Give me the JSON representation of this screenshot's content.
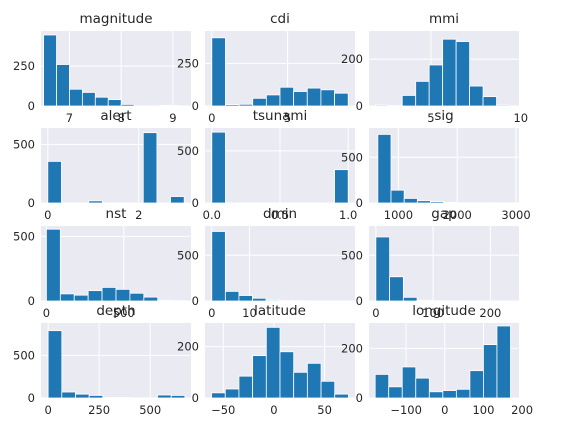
{
  "chart_data": [
    {
      "type": "bar",
      "title": "magnitude",
      "xticks": [
        "7",
        "8",
        "9"
      ],
      "xlim": [
        6.45,
        9.35
      ],
      "yticks": [
        "0",
        "250"
      ],
      "ylim": [
        0,
        470
      ],
      "bin_edges": [
        6.5,
        6.75,
        7.0,
        7.25,
        7.5,
        7.75,
        8.0,
        8.25,
        8.5,
        8.75,
        9.1
      ],
      "values": [
        445,
        260,
        105,
        85,
        55,
        40,
        10,
        0,
        0,
        4
      ]
    },
    {
      "type": "bar",
      "title": "cdi",
      "xticks": [
        "0",
        "5"
      ],
      "xlim": [
        -0.45,
        9.45
      ],
      "yticks": [
        "0",
        "250"
      ],
      "ylim": [
        0,
        440
      ],
      "bin_edges": [
        0,
        0.9,
        1.8,
        2.7,
        3.6,
        4.5,
        5.4,
        6.3,
        7.2,
        8.1,
        9.0
      ],
      "values": [
        400,
        8,
        10,
        45,
        65,
        110,
        85,
        105,
        95,
        75
      ]
    },
    {
      "type": "bar",
      "title": "mmi",
      "xticks": [
        "5",
        "10"
      ],
      "xlim": [
        1.55,
        9.9
      ],
      "yticks": [
        "0",
        "200"
      ],
      "ylim": [
        0,
        320
      ],
      "bin_edges": [
        1.9,
        2.65,
        3.4,
        4.15,
        4.9,
        5.65,
        6.4,
        7.15,
        7.9,
        8.65,
        9.4
      ],
      "values": [
        4,
        2,
        45,
        105,
        175,
        285,
        275,
        85,
        40,
        4
      ]
    },
    {
      "type": "bar",
      "title": "alert",
      "xticks": [
        "0",
        "2"
      ],
      "xlim": [
        -0.15,
        3.15
      ],
      "yticks": [
        "0",
        "500"
      ],
      "ylim": [
        0,
        640
      ],
      "bin_edges": [
        0,
        0.3,
        0.6,
        0.9,
        1.2,
        1.5,
        1.8,
        2.1,
        2.4,
        2.7,
        3.0
      ],
      "values": [
        355,
        0,
        0,
        18,
        0,
        0,
        0,
        600,
        0,
        55
      ]
    },
    {
      "type": "bar",
      "title": "tsunami",
      "xticks": [
        "0.0",
        "0.5",
        "1.0"
      ],
      "xlim": [
        -0.05,
        1.05
      ],
      "yticks": [
        "0",
        "500"
      ],
      "ylim": [
        0,
        720
      ],
      "bin_edges": [
        0,
        0.1,
        0.2,
        0.3,
        0.4,
        0.5,
        0.6,
        0.7,
        0.8,
        0.9,
        1.0
      ],
      "values": [
        680,
        0,
        0,
        0,
        0,
        0,
        0,
        0,
        0,
        320
      ]
    },
    {
      "type": "bar",
      "title": "sig",
      "xticks": [
        "1000",
        "2000",
        "3000"
      ],
      "xlim": [
        500,
        3050
      ],
      "yticks": [
        "0",
        "500"
      ],
      "ylim": [
        0,
        820
      ],
      "bin_edges": [
        650,
        874,
        1098,
        1322,
        1546,
        1770,
        1994,
        2218,
        2442,
        2666,
        2890
      ],
      "values": [
        750,
        140,
        50,
        25,
        15,
        6,
        3,
        2,
        2,
        1
      ]
    },
    {
      "type": "bar",
      "title": "nst",
      "xticks": [
        "0",
        "500"
      ],
      "xlim": [
        -35,
        935
      ],
      "yticks": [
        "0",
        "500"
      ],
      "ylim": [
        0,
        580
      ],
      "bin_edges": [
        0,
        90,
        180,
        270,
        360,
        450,
        540,
        630,
        720,
        810,
        900
      ],
      "values": [
        555,
        55,
        45,
        80,
        105,
        90,
        60,
        30,
        5,
        2
      ]
    },
    {
      "type": "bar",
      "title": "dmin",
      "xticks": [
        "0",
        "10"
      ],
      "xlim": [
        -1.8,
        38
      ],
      "yticks": [
        "0",
        "500"
      ],
      "ylim": [
        0,
        820
      ],
      "bin_edges": [
        0,
        3.6,
        7.2,
        10.8,
        14.4,
        18,
        21.6,
        25.2,
        28.8,
        32.4,
        36
      ],
      "values": [
        760,
        105,
        60,
        30,
        10,
        5,
        3,
        1,
        1,
        1
      ]
    },
    {
      "type": "bar",
      "title": "gap",
      "xticks": [
        "0",
        "100",
        "200"
      ],
      "xlim": [
        -12,
        250
      ],
      "yticks": [
        "0",
        "500"
      ],
      "ylim": [
        0,
        820
      ],
      "bin_edges": [
        0,
        24,
        48,
        72,
        96,
        120,
        144,
        168,
        192,
        216,
        240
      ],
      "values": [
        700,
        265,
        40,
        8,
        3,
        2,
        1,
        1,
        1,
        1
      ]
    },
    {
      "type": "bar",
      "title": "depth",
      "xticks": [
        "0",
        "250",
        "500"
      ],
      "xlim": [
        -35,
        700
      ],
      "yticks": [
        "0",
        "500"
      ],
      "ylim": [
        0,
        880
      ],
      "bin_edges": [
        0,
        67,
        134,
        201,
        268,
        335,
        402,
        469,
        536,
        603,
        670
      ],
      "values": [
        790,
        70,
        45,
        30,
        5,
        5,
        2,
        1,
        35,
        30
      ]
    },
    {
      "type": "bar",
      "title": "latitude",
      "xticks": [
        "−50",
        "0",
        "50"
      ],
      "xlim": [
        -68,
        80
      ],
      "yticks": [
        "0",
        "200"
      ],
      "ylim": [
        0,
        292
      ],
      "bin_edges": [
        -61.5,
        -48,
        -34.5,
        -21,
        -7.5,
        6,
        19.5,
        33,
        46.5,
        60,
        73.5
      ],
      "values": [
        20,
        35,
        85,
        165,
        275,
        180,
        100,
        135,
        65,
        15
      ]
    },
    {
      "type": "bar",
      "title": "longitude",
      "xticks": [
        "−100",
        "0",
        "100",
        "200"
      ],
      "xlim": [
        -196,
        192
      ],
      "yticks": [
        "0",
        "200"
      ],
      "ylim": [
        0,
        302
      ],
      "bin_edges": [
        -180,
        -145,
        -110,
        -75,
        -40,
        -5,
        30,
        65,
        100,
        135,
        170
      ],
      "values": [
        95,
        45,
        125,
        80,
        25,
        30,
        35,
        110,
        215,
        290
      ]
    }
  ]
}
